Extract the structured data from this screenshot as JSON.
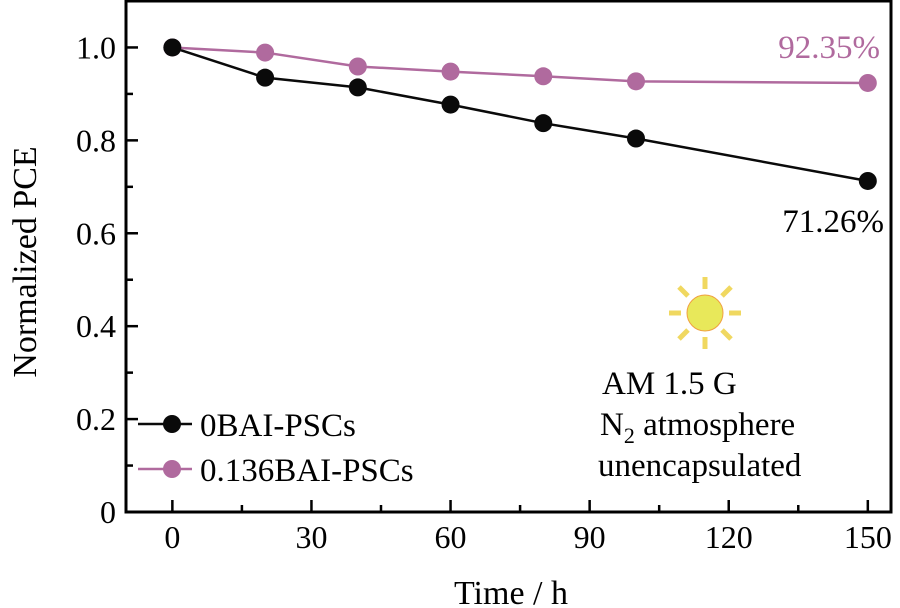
{
  "chart_data": {
    "type": "line",
    "title": "",
    "xlabel": "Time / h",
    "ylabel": "Normalized PCE",
    "xlim": [
      -10,
      155
    ],
    "ylim": [
      0,
      1.1
    ],
    "xticks": [
      0,
      30,
      60,
      90,
      120,
      150
    ],
    "xtick_labels": [
      "0",
      "30",
      "60",
      "90",
      "120",
      "150"
    ],
    "yticks": [
      0,
      0.2,
      0.4,
      0.6,
      0.8,
      1.0
    ],
    "ytick_labels": [
      "0",
      "0.2",
      "0.4",
      "0.6",
      "0.8",
      "1.0"
    ],
    "grid": false,
    "legend_position": "bottom-left",
    "series": [
      {
        "name": "0BAI-PSCs",
        "color": "#0a0a0a",
        "x": [
          0,
          20,
          40,
          60,
          80,
          100,
          150
        ],
        "y": [
          1.0,
          0.935,
          0.914,
          0.877,
          0.837,
          0.804,
          0.7126
        ]
      },
      {
        "name": "0.136BAI-PSCs",
        "color": "#b06a9e",
        "x": [
          0,
          20,
          40,
          60,
          80,
          100,
          150
        ],
        "y": [
          1.0,
          0.989,
          0.959,
          0.948,
          0.938,
          0.927,
          0.9235
        ]
      }
    ],
    "annotations": {
      "pink_end": "92.35%",
      "black_end": "71.26%",
      "conditions": [
        "AM 1.5 G",
        "N",
        "2",
        " atmosphere",
        "unencapsulated"
      ]
    },
    "icon": "sun-icon"
  }
}
